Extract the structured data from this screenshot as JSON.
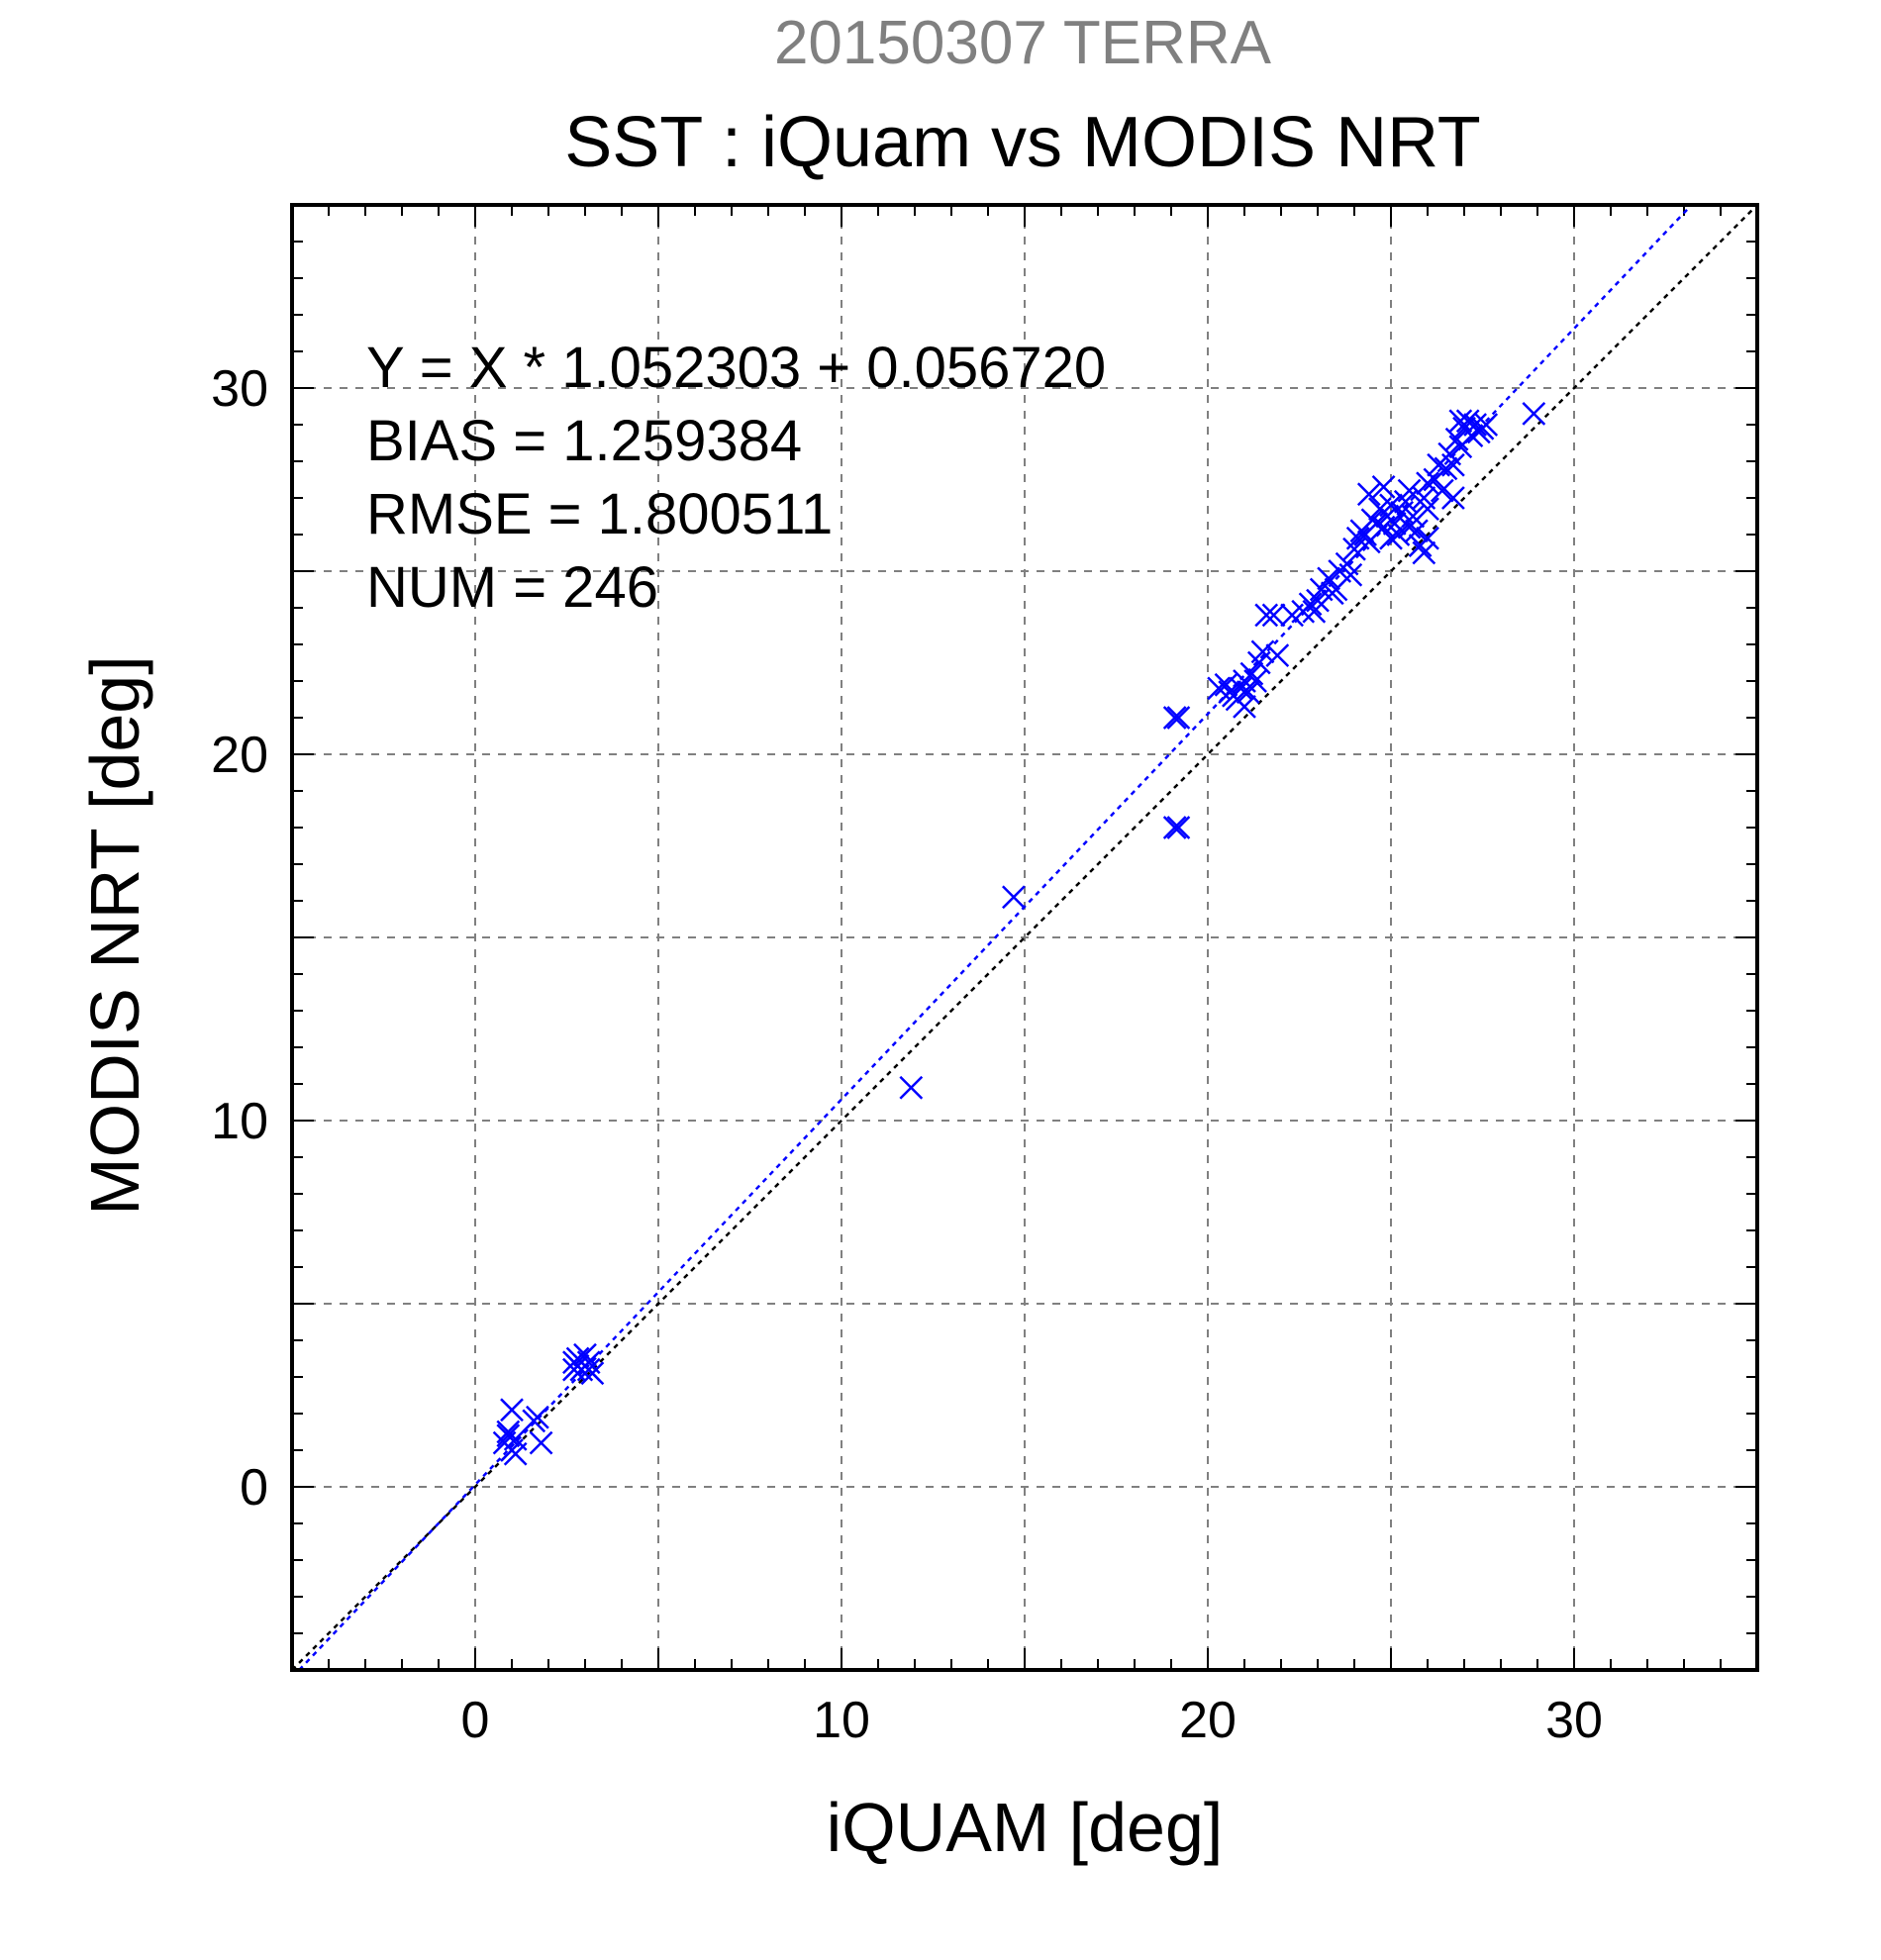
{
  "chart_data": {
    "type": "scatter",
    "supertitle": "20150307 TERRA",
    "title": "SST : iQuam vs MODIS NRT",
    "xlabel": "iQUAM [deg]",
    "ylabel": "MODIS NRT [deg]",
    "xlim": [
      -5,
      35
    ],
    "ylim": [
      -5,
      35
    ],
    "xticks": [
      0,
      10,
      20,
      30
    ],
    "yticks": [
      0,
      10,
      20,
      30
    ],
    "grid_step": 5,
    "minor_step": 1,
    "grid": true,
    "stats": [
      "Y = X * 1.052303 + 0.056720",
      "BIAS = 1.259384",
      "RMSE = 1.800511",
      "NUM = 246"
    ],
    "fit": {
      "slope": 1.052303,
      "intercept": 0.05672,
      "color": "#0000ff"
    },
    "identity_line_color": "#000000",
    "marker_color": "#0000ff",
    "points": [
      [
        0.8,
        1.2
      ],
      [
        0.9,
        1.5
      ],
      [
        1.0,
        1.0
      ],
      [
        1.1,
        1.3
      ],
      [
        1.0,
        2.1
      ],
      [
        1.1,
        0.9
      ],
      [
        0.9,
        1.4
      ],
      [
        1.7,
        1.9
      ],
      [
        1.8,
        1.2
      ],
      [
        1.6,
        1.8
      ],
      [
        2.7,
        3.4
      ],
      [
        2.8,
        3.5
      ],
      [
        2.9,
        3.2
      ],
      [
        3.0,
        3.3
      ],
      [
        3.1,
        3.4
      ],
      [
        3.2,
        3.1
      ],
      [
        2.7,
        3.2
      ],
      [
        3.0,
        3.6
      ],
      [
        2.8,
        3.3
      ],
      [
        3.1,
        3.2
      ],
      [
        11.9,
        10.9
      ],
      [
        14.7,
        16.1
      ],
      [
        19.1,
        18.0
      ],
      [
        19.2,
        18.0
      ],
      [
        19.1,
        21.0
      ],
      [
        19.2,
        21.0
      ],
      [
        20.3,
        21.8
      ],
      [
        20.5,
        21.9
      ],
      [
        20.6,
        21.7
      ],
      [
        20.7,
        21.6
      ],
      [
        20.8,
        21.5
      ],
      [
        20.9,
        21.8
      ],
      [
        21.0,
        22.0
      ],
      [
        21.0,
        21.3
      ],
      [
        21.1,
        21.7
      ],
      [
        21.2,
        22.2
      ],
      [
        21.3,
        22.0
      ],
      [
        21.4,
        22.5
      ],
      [
        21.5,
        22.8
      ],
      [
        21.6,
        23.8
      ],
      [
        21.8,
        23.8
      ],
      [
        21.9,
        22.7
      ],
      [
        22.3,
        23.8
      ],
      [
        22.6,
        23.9
      ],
      [
        22.8,
        24.1
      ],
      [
        22.9,
        23.9
      ],
      [
        23.0,
        24.2
      ],
      [
        23.1,
        24.5
      ],
      [
        23.3,
        24.8
      ],
      [
        23.4,
        24.4
      ],
      [
        23.5,
        24.5
      ],
      [
        23.6,
        25.0
      ],
      [
        23.8,
        25.2
      ],
      [
        23.9,
        24.9
      ],
      [
        24.0,
        25.6
      ],
      [
        24.1,
        25.9
      ],
      [
        24.2,
        26.1
      ],
      [
        24.3,
        26.0
      ],
      [
        24.4,
        25.8
      ],
      [
        24.5,
        26.4
      ],
      [
        24.6,
        26.3
      ],
      [
        24.7,
        26.7
      ],
      [
        24.8,
        26.2
      ],
      [
        24.9,
        26.5
      ],
      [
        25.0,
        26.8
      ],
      [
        25.0,
        25.9
      ],
      [
        25.1,
        26.3
      ],
      [
        25.2,
        26.0
      ],
      [
        25.3,
        26.6
      ],
      [
        25.4,
        26.9
      ],
      [
        25.5,
        26.2
      ],
      [
        25.6,
        26.5
      ],
      [
        25.7,
        26.1
      ],
      [
        25.8,
        25.7
      ],
      [
        25.9,
        25.5
      ],
      [
        26.0,
        25.9
      ],
      [
        26.0,
        26.7
      ],
      [
        24.4,
        27.1
      ],
      [
        24.8,
        27.3
      ],
      [
        25.5,
        27.2
      ],
      [
        25.9,
        27.0
      ],
      [
        26.0,
        27.4
      ],
      [
        26.2,
        27.5
      ],
      [
        26.3,
        27.9
      ],
      [
        26.4,
        27.2
      ],
      [
        26.5,
        27.8
      ],
      [
        26.6,
        28.2
      ],
      [
        26.7,
        27.9
      ],
      [
        26.8,
        28.6
      ],
      [
        26.9,
        28.4
      ],
      [
        27.0,
        28.9
      ],
      [
        27.1,
        29.1
      ],
      [
        27.2,
        28.7
      ],
      [
        27.3,
        29.0
      ],
      [
        27.4,
        28.8
      ],
      [
        27.5,
        28.9
      ],
      [
        27.6,
        29.0
      ],
      [
        26.7,
        27.0
      ],
      [
        26.9,
        29.1
      ],
      [
        28.9,
        29.3
      ]
    ]
  }
}
